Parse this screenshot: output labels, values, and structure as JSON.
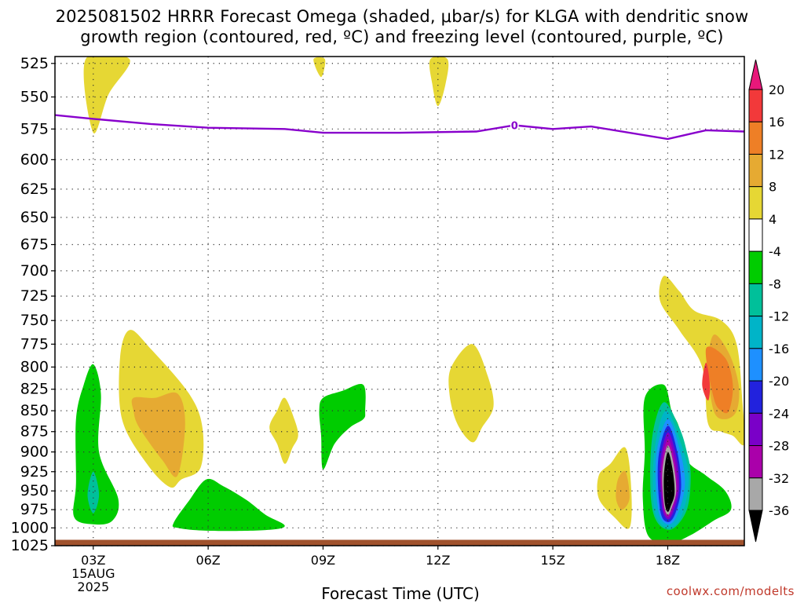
{
  "header": {
    "title_line1": "2025081502 HRRR Forecast Omega (shaded, μbar/s) for KLGA with dendritic snow",
    "title_line2": "growth region (contoured, red, ºC) and freezing level (contoured, purple, ºC)"
  },
  "footer": {
    "credit": "coolwx.com/modelts"
  },
  "chart_data": {
    "type": "contour",
    "xlabel": "Forecast Time (UTC)",
    "x_ticks": [
      {
        "hour": 3,
        "lines": [
          "03Z",
          "15AUG",
          "2025"
        ]
      },
      {
        "hour": 6,
        "lines": [
          "06Z"
        ]
      },
      {
        "hour": 9,
        "lines": [
          "09Z"
        ]
      },
      {
        "hour": 12,
        "lines": [
          "12Z"
        ]
      },
      {
        "hour": 15,
        "lines": [
          "15Z"
        ]
      },
      {
        "hour": 18,
        "lines": [
          "18Z"
        ]
      }
    ],
    "x_range_hours": [
      2,
      20
    ],
    "y_ticks": [
      525,
      550,
      575,
      600,
      625,
      650,
      675,
      700,
      725,
      750,
      775,
      800,
      825,
      850,
      875,
      900,
      925,
      950,
      975,
      1000,
      1025
    ],
    "y_range_hPa": [
      520,
      1025
    ],
    "y_scale": "log",
    "grid": true,
    "colorbar": {
      "labels": [
        "20",
        "16",
        "12",
        "8",
        "4",
        "-4",
        "-8",
        "-12",
        "-16",
        "-20",
        "-24",
        "-28",
        "-32",
        "-36"
      ],
      "colors": [
        "#e8187a",
        "#f2393a",
        "#ee7f26",
        "#e6aa32",
        "#e6d734",
        "#ffffff",
        "#00cc00",
        "#00c09a",
        "#00b4c8",
        "#1e90ff",
        "#2222dd",
        "#7a00c8",
        "#aa00aa",
        "#a8a8a8",
        "#000000"
      ]
    },
    "freezing_level": {
      "label": "0",
      "color": "#8800cc",
      "points": [
        [
          2,
          564
        ],
        [
          3,
          567
        ],
        [
          4.5,
          571
        ],
        [
          6,
          574
        ],
        [
          8,
          575
        ],
        [
          9,
          578
        ],
        [
          11,
          578
        ],
        [
          13,
          577
        ],
        [
          14,
          572
        ],
        [
          15,
          575
        ],
        [
          16,
          573
        ],
        [
          18,
          583
        ],
        [
          19,
          576
        ],
        [
          20,
          577
        ]
      ]
    },
    "ground": {
      "color": "#a0522d",
      "pressure_hPa": 1020
    },
    "omega_regions": [
      {
        "name": "upper-positive-a",
        "value": 4,
        "color": "#e6d734",
        "points": [
          [
            2.8,
            522
          ],
          [
            3.0,
            578
          ],
          [
            3.4,
            548
          ],
          [
            3.95,
            522
          ]
        ]
      },
      {
        "name": "upper-positive-b",
        "value": 4,
        "color": "#e6d734",
        "points": [
          [
            8.75,
            522
          ],
          [
            8.95,
            535
          ],
          [
            9.05,
            522
          ]
        ]
      },
      {
        "name": "upper-positive-c",
        "value": 4,
        "color": "#e6d734",
        "points": [
          [
            11.8,
            522
          ],
          [
            11.85,
            540
          ],
          [
            12.0,
            557
          ],
          [
            12.2,
            540
          ],
          [
            12.25,
            522
          ]
        ]
      },
      {
        "name": "negative-left",
        "value": -4,
        "color": "#00cc00",
        "points": [
          [
            3.0,
            797
          ],
          [
            3.2,
            830
          ],
          [
            3.15,
            900
          ],
          [
            3.65,
            960
          ],
          [
            3.5,
            990
          ],
          [
            3.0,
            995
          ],
          [
            2.5,
            985
          ],
          [
            2.55,
            940
          ],
          [
            2.55,
            860
          ],
          [
            2.75,
            820
          ]
        ]
      },
      {
        "name": "negative-left-core",
        "value": -8,
        "color": "#00c09a",
        "points": [
          [
            3.0,
            925
          ],
          [
            3.15,
            955
          ],
          [
            3.0,
            980
          ],
          [
            2.85,
            955
          ]
        ]
      },
      {
        "name": "positive-mid-left",
        "value": 4,
        "color": "#e6d734",
        "points": [
          [
            3.95,
            760
          ],
          [
            4.5,
            780
          ],
          [
            5.5,
            830
          ],
          [
            5.85,
            870
          ],
          [
            5.8,
            920
          ],
          [
            5.3,
            935
          ],
          [
            5.0,
            945
          ],
          [
            4.4,
            915
          ],
          [
            3.75,
            860
          ],
          [
            3.7,
            790
          ]
        ]
      },
      {
        "name": "positive-mid-left-core",
        "value": 8,
        "color": "#e6aa32",
        "points": [
          [
            4.05,
            835
          ],
          [
            4.6,
            835
          ],
          [
            5.2,
            830
          ],
          [
            5.4,
            865
          ],
          [
            5.2,
            930
          ],
          [
            4.8,
            910
          ],
          [
            4.2,
            870
          ],
          [
            4.05,
            850
          ]
        ]
      },
      {
        "name": "negative-bottom",
        "value": -4,
        "color": "#00cc00",
        "points": [
          [
            5.1,
            993
          ],
          [
            5.5,
            963
          ],
          [
            5.95,
            935
          ],
          [
            6.4,
            944
          ],
          [
            7.0,
            962
          ],
          [
            7.5,
            982
          ],
          [
            8.0,
            997
          ],
          [
            7.5,
            1003
          ],
          [
            6.0,
            1004
          ],
          [
            5.2,
            1000
          ]
        ]
      },
      {
        "name": "positive-small-mid",
        "value": 4,
        "color": "#e6d734",
        "points": [
          [
            8.0,
            835
          ],
          [
            8.25,
            860
          ],
          [
            8.35,
            880
          ],
          [
            8.2,
            895
          ],
          [
            8.0,
            915
          ],
          [
            7.8,
            890
          ],
          [
            7.6,
            870
          ],
          [
            7.8,
            850
          ]
        ]
      },
      {
        "name": "negative-mid",
        "value": -4,
        "color": "#00cc00",
        "points": [
          [
            9.0,
            835
          ],
          [
            9.5,
            827
          ],
          [
            10.05,
            820
          ],
          [
            10.1,
            850
          ],
          [
            10.05,
            860
          ],
          [
            9.7,
            870
          ],
          [
            9.3,
            890
          ],
          [
            9.0,
            922
          ],
          [
            8.95,
            880
          ],
          [
            8.9,
            850
          ]
        ]
      },
      {
        "name": "positive-mid-right",
        "value": 4,
        "color": "#e6d734",
        "points": [
          [
            12.9,
            775
          ],
          [
            13.3,
            810
          ],
          [
            13.45,
            845
          ],
          [
            13.15,
            870
          ],
          [
            12.9,
            888
          ],
          [
            12.5,
            865
          ],
          [
            12.3,
            830
          ],
          [
            12.35,
            800
          ]
        ]
      },
      {
        "name": "positive-right-lower",
        "value": 4,
        "color": "#e6d734",
        "points": [
          [
            16.9,
            895
          ],
          [
            17.05,
            950
          ],
          [
            17.0,
            1000
          ],
          [
            16.6,
            985
          ],
          [
            16.2,
            960
          ],
          [
            16.2,
            930
          ],
          [
            16.5,
            915
          ]
        ]
      },
      {
        "name": "positive-right-lower-core",
        "value": 8,
        "color": "#e6aa32",
        "points": [
          [
            16.9,
            925
          ],
          [
            17.0,
            960
          ],
          [
            16.8,
            975
          ],
          [
            16.65,
            960
          ],
          [
            16.7,
            935
          ]
        ]
      },
      {
        "name": "positive-right-upper",
        "value": 4,
        "color": "#e6d734",
        "points": [
          [
            17.9,
            705
          ],
          [
            18.3,
            720
          ],
          [
            18.7,
            740
          ],
          [
            19.4,
            750
          ],
          [
            19.8,
            775
          ],
          [
            19.95,
            840
          ],
          [
            20.0,
            890
          ],
          [
            19.7,
            880
          ],
          [
            19.4,
            875
          ],
          [
            19.05,
            865
          ],
          [
            18.9,
            800
          ],
          [
            18.3,
            760
          ],
          [
            17.8,
            730
          ]
        ]
      },
      {
        "name": "positive-right-upper-8",
        "value": 8,
        "color": "#e6aa32",
        "points": [
          [
            19.2,
            765
          ],
          [
            19.6,
            785
          ],
          [
            19.85,
            820
          ],
          [
            19.8,
            850
          ],
          [
            19.5,
            860
          ],
          [
            19.2,
            850
          ],
          [
            19.05,
            800
          ]
        ]
      },
      {
        "name": "positive-right-upper-12",
        "value": 12,
        "color": "#ee7f26",
        "points": [
          [
            19.0,
            780
          ],
          [
            19.5,
            790
          ],
          [
            19.7,
            820
          ],
          [
            19.6,
            850
          ],
          [
            19.4,
            850
          ],
          [
            19.2,
            835
          ]
        ]
      },
      {
        "name": "positive-right-upper-16",
        "value": 16,
        "color": "#f2393a",
        "points": [
          [
            19.0,
            795
          ],
          [
            19.1,
            820
          ],
          [
            19.05,
            838
          ],
          [
            18.9,
            820
          ]
        ]
      },
      {
        "name": "negative-right",
        "value": -4,
        "color": "#00cc00",
        "points": [
          [
            17.4,
            835
          ],
          [
            17.9,
            820
          ],
          [
            18.1,
            850
          ],
          [
            18.3,
            870
          ],
          [
            18.5,
            910
          ],
          [
            19.0,
            930
          ],
          [
            19.5,
            950
          ],
          [
            19.65,
            975
          ],
          [
            19.2,
            990
          ],
          [
            18.6,
            1010
          ],
          [
            18.1,
            1020
          ],
          [
            17.5,
            1012
          ],
          [
            17.35,
            960
          ],
          [
            17.4,
            900
          ]
        ]
      },
      {
        "name": "negative-right-8",
        "value": -8,
        "color": "#00c09a",
        "points": [
          [
            17.9,
            840
          ],
          [
            18.3,
            870
          ],
          [
            18.5,
            900
          ],
          [
            18.6,
            930
          ],
          [
            18.5,
            975
          ],
          [
            18.1,
            1002
          ],
          [
            17.7,
            990
          ],
          [
            17.55,
            950
          ],
          [
            17.6,
            880
          ]
        ]
      },
      {
        "name": "negative-right-12",
        "value": -12,
        "color": "#00b4c8",
        "points": [
          [
            17.95,
            850
          ],
          [
            18.35,
            890
          ],
          [
            18.55,
            935
          ],
          [
            18.35,
            985
          ],
          [
            18.0,
            1000
          ],
          [
            17.65,
            975
          ],
          [
            17.65,
            900
          ]
        ]
      },
      {
        "name": "negative-right-16",
        "value": -16,
        "color": "#1e90ff",
        "points": [
          [
            18.0,
            860
          ],
          [
            18.3,
            895
          ],
          [
            18.45,
            940
          ],
          [
            18.25,
            982
          ],
          [
            18.0,
            995
          ],
          [
            17.75,
            975
          ],
          [
            17.7,
            905
          ]
        ]
      },
      {
        "name": "negative-right-20",
        "value": -20,
        "color": "#2222dd",
        "points": [
          [
            18.0,
            868
          ],
          [
            18.25,
            900
          ],
          [
            18.35,
            945
          ],
          [
            18.2,
            980
          ],
          [
            18.0,
            992
          ],
          [
            17.8,
            975
          ],
          [
            17.75,
            910
          ]
        ]
      },
      {
        "name": "negative-right-24",
        "value": -24,
        "color": "#7a00c8",
        "points": [
          [
            18.0,
            876
          ],
          [
            18.22,
            905
          ],
          [
            18.3,
            947
          ],
          [
            18.15,
            978
          ],
          [
            18.0,
            988
          ],
          [
            17.85,
            972
          ],
          [
            17.8,
            915
          ]
        ]
      },
      {
        "name": "negative-right-28",
        "value": -28,
        "color": "#aa00aa",
        "points": [
          [
            18.0,
            884
          ],
          [
            18.18,
            910
          ],
          [
            18.25,
            948
          ],
          [
            18.12,
            975
          ],
          [
            18.0,
            985
          ],
          [
            17.88,
            970
          ],
          [
            17.83,
            920
          ]
        ]
      },
      {
        "name": "negative-right-32",
        "value": -32,
        "color": "#a8a8a8",
        "points": [
          [
            18.0,
            892
          ],
          [
            18.15,
            915
          ],
          [
            18.22,
            950
          ],
          [
            18.1,
            973
          ],
          [
            18.0,
            982
          ],
          [
            17.9,
            968
          ],
          [
            17.86,
            925
          ]
        ]
      },
      {
        "name": "negative-right-36",
        "value": -36,
        "color": "#000000",
        "points": [
          [
            18.0,
            900
          ],
          [
            18.12,
            920
          ],
          [
            18.18,
            952
          ],
          [
            18.08,
            970
          ],
          [
            18.0,
            978
          ],
          [
            17.92,
            965
          ],
          [
            17.9,
            930
          ]
        ]
      }
    ]
  }
}
